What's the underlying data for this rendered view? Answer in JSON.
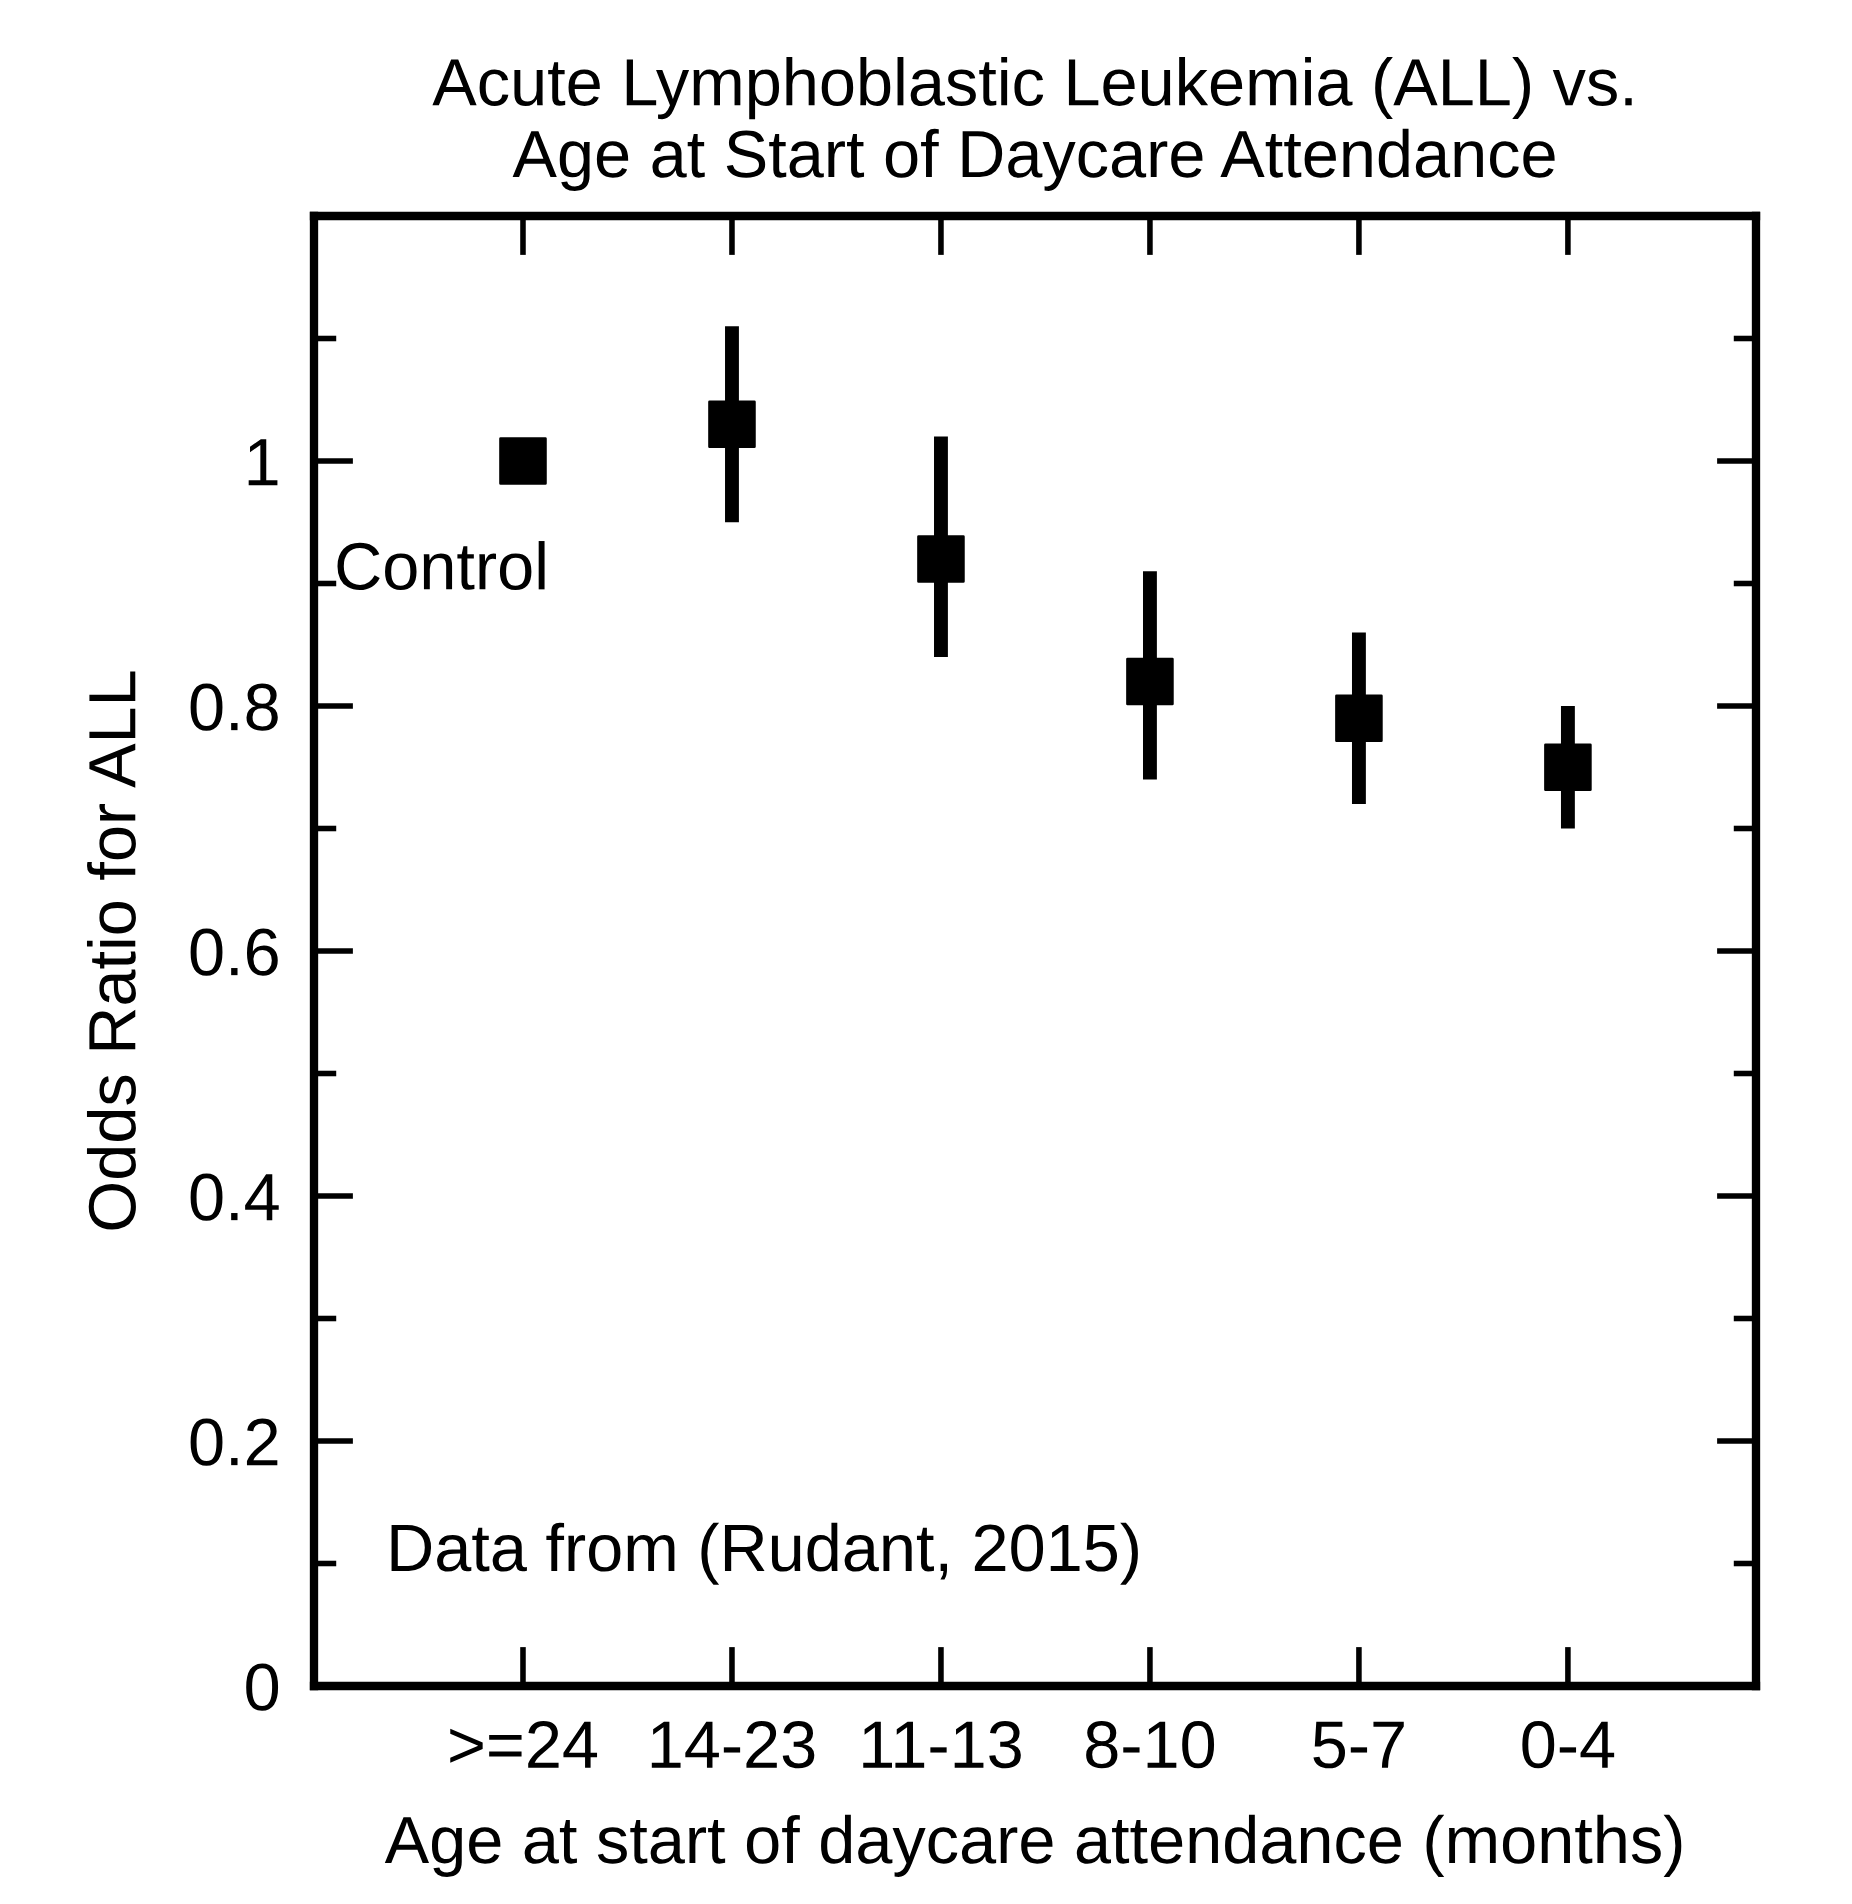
{
  "chart_data": {
    "type": "scatter",
    "title": "Acute Lymphoblastic Leukemia (ALL) vs.\nAge at Start of Daycare Attendance",
    "xlabel": "Age at start of daycare attendance (months)",
    "ylabel": "Odds Ratio for ALL",
    "categories": [
      ">=24",
      "14-23",
      "11-13",
      "8-10",
      "5-7",
      "0-4"
    ],
    "values": [
      1.0,
      1.03,
      0.92,
      0.82,
      0.79,
      0.75
    ],
    "errors": [
      null,
      [
        0.95,
        1.11
      ],
      [
        0.84,
        1.02
      ],
      [
        0.74,
        0.91
      ],
      [
        0.72,
        0.86
      ],
      [
        0.7,
        0.8
      ]
    ],
    "color": "#000000",
    "marker": "square",
    "ylim": [
      0,
      1.2
    ],
    "yticks": [
      0,
      {
        "value": 0.1,
        "label": null
      },
      0.2,
      {
        "value": 0.3,
        "label": null
      },
      0.4,
      {
        "value": 0.5,
        "label": null
      },
      0.6,
      {
        "value": 0.7,
        "label": null
      },
      0.8,
      {
        "value": 0.9,
        "label": null
      },
      1,
      {
        "value": 1.1,
        "label": null
      }
    ],
    "grid": false,
    "legend": false,
    "annotations": [
      {
        "text": "Control",
        "x": ">=24",
        "y": 1.0
      },
      "Data from (Rudant, 2015)"
    ]
  }
}
